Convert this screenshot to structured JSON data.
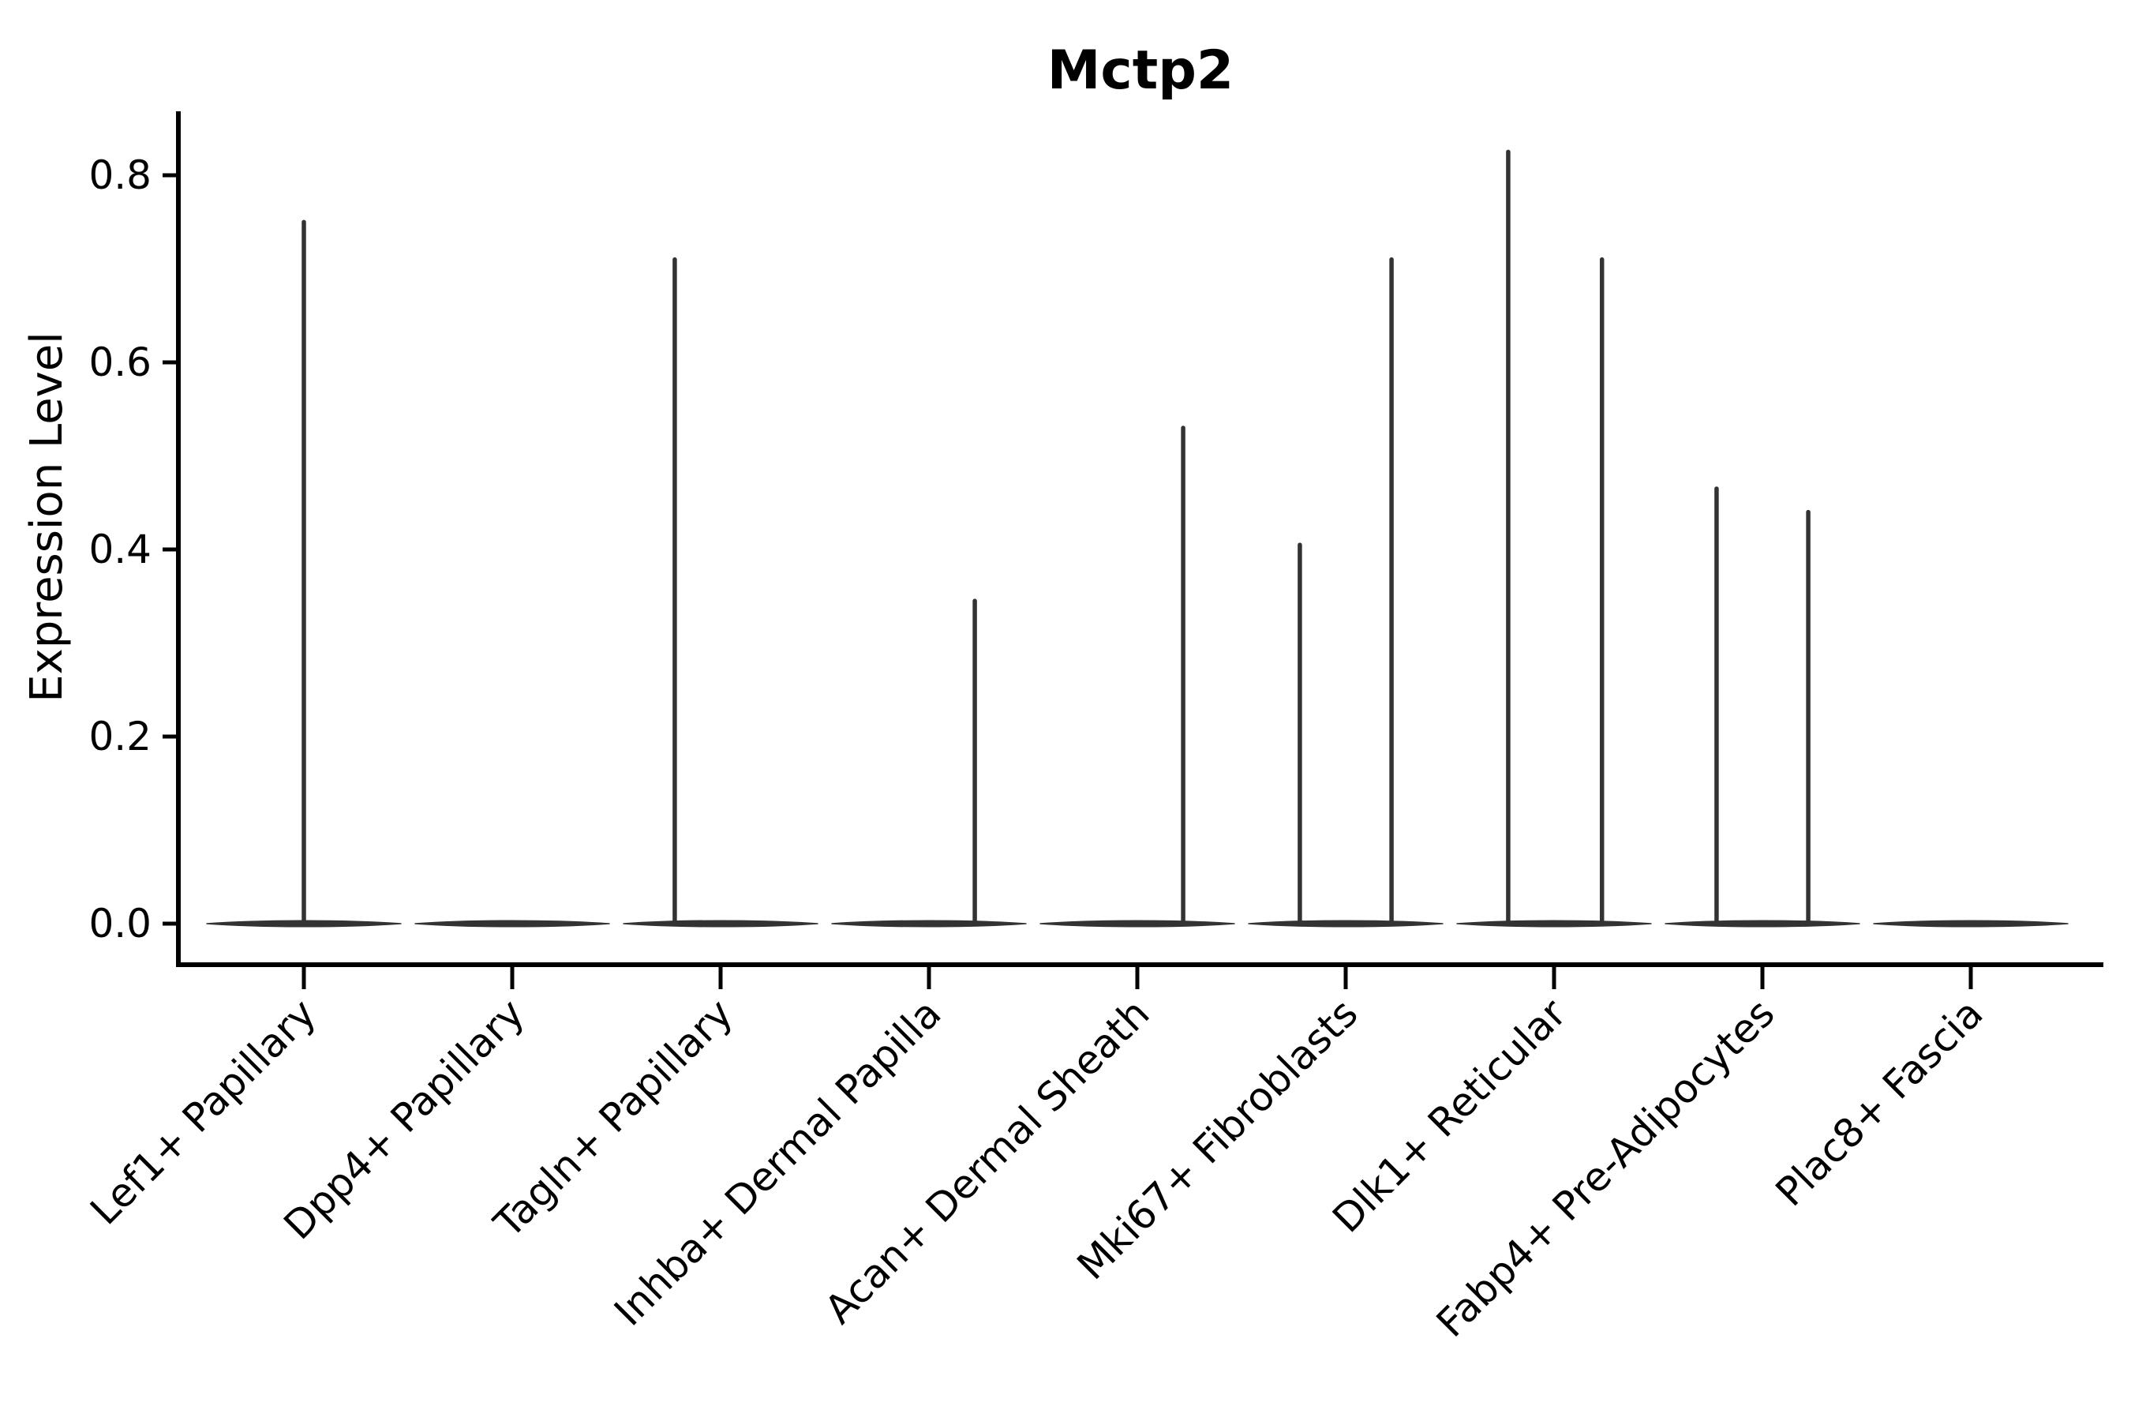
{
  "figure": {
    "background_color": "#ffffff",
    "axis_color": "#000000",
    "violin_color": "#333333"
  },
  "chart_data": {
    "type": "violin",
    "title": "Mctp2",
    "xlabel": "",
    "ylabel": "Expression Level",
    "grid": false,
    "legend": "none",
    "y_ticks": [
      0.0,
      0.2,
      0.4,
      0.6,
      0.8
    ],
    "y_tick_labels": [
      "0.0",
      "0.2",
      "0.4",
      "0.6",
      "0.8"
    ],
    "ylim": [
      -0.045,
      0.87
    ],
    "categories": [
      "Lef1+ Papillary",
      "Dpp4+ Papillary",
      "Tagln+ Papillary",
      "Inhba+ Dermal Papilla",
      "Acan+ Dermal Sheath",
      "Mki67+ Fibroblasts",
      "Dlk1+ Reticular",
      "Fabp4+ Pre-Adipocytes",
      "Plac8+ Fascia"
    ],
    "x_tick_label_rotation_deg": 45,
    "series": [
      {
        "category": "Lef1+ Papillary",
        "baseline_body_at_zero": true,
        "max_expression": 0.75,
        "spikes": [
          {
            "x_offset_frac": 0.0,
            "value": 0.75
          }
        ]
      },
      {
        "category": "Dpp4+ Papillary",
        "baseline_body_at_zero": true,
        "max_expression": 0.0,
        "spikes": []
      },
      {
        "category": "Tagln+ Papillary",
        "baseline_body_at_zero": true,
        "max_expression": 0.71,
        "spikes": [
          {
            "x_offset_frac": -0.22,
            "value": 0.71
          }
        ]
      },
      {
        "category": "Inhba+ Dermal Papilla",
        "baseline_body_at_zero": true,
        "max_expression": 0.345,
        "spikes": [
          {
            "x_offset_frac": 0.22,
            "value": 0.345
          }
        ]
      },
      {
        "category": "Acan+ Dermal Sheath",
        "baseline_body_at_zero": true,
        "max_expression": 0.53,
        "spikes": [
          {
            "x_offset_frac": 0.22,
            "value": 0.53
          }
        ]
      },
      {
        "category": "Mki67+ Fibroblasts",
        "baseline_body_at_zero": true,
        "max_expression": 0.71,
        "spikes": [
          {
            "x_offset_frac": -0.22,
            "value": 0.405
          },
          {
            "x_offset_frac": 0.22,
            "value": 0.71
          }
        ]
      },
      {
        "category": "Dlk1+ Reticular",
        "baseline_body_at_zero": true,
        "max_expression": 0.825,
        "spikes": [
          {
            "x_offset_frac": -0.22,
            "value": 0.825
          },
          {
            "x_offset_frac": 0.23,
            "value": 0.71
          }
        ]
      },
      {
        "category": "Fabp4+ Pre-Adipocytes",
        "baseline_body_at_zero": true,
        "max_expression": 0.465,
        "spikes": [
          {
            "x_offset_frac": -0.22,
            "value": 0.465
          },
          {
            "x_offset_frac": 0.22,
            "value": 0.44
          }
        ]
      },
      {
        "category": "Plac8+ Fascia",
        "baseline_body_at_zero": true,
        "max_expression": 0.0,
        "spikes": []
      }
    ]
  }
}
